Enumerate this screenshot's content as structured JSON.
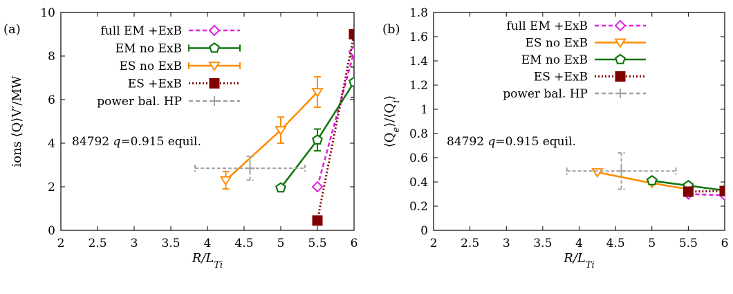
{
  "chart_data": [
    {
      "type": "line",
      "panel_label": "(a)",
      "xlabel": "R/L_Ti",
      "ylabel": "ions ⟨Q⟩V′/MW",
      "xlim": [
        2,
        6
      ],
      "ylim": [
        0,
        10
      ],
      "xticks": [
        2,
        2.5,
        3,
        3.5,
        4,
        4.5,
        5,
        5.5,
        6
      ],
      "yticks": [
        0,
        2,
        4,
        6,
        8,
        10
      ],
      "annotation": "84792 q = 0.915 equil.",
      "legend_placement": "top-left",
      "series": [
        {
          "name": "full EM +ExB",
          "color": "#e020e0",
          "marker": "diamond",
          "dash": "dashed",
          "x": [
            5.5,
            6.0
          ],
          "y": [
            2.0,
            8.2
          ],
          "yerr": [
            0,
            0
          ]
        },
        {
          "name": "EM no ExB",
          "color": "#117711",
          "marker": "pentagon",
          "dash": "solid",
          "x": [
            5.0,
            5.5,
            6.0
          ],
          "y": [
            1.95,
            4.15,
            6.8
          ],
          "yerr": [
            0,
            0.5,
            0.7
          ]
        },
        {
          "name": "ES no ExB",
          "color": "#ff8c00",
          "marker": "triangle-down",
          "dash": "solid",
          "x": [
            4.25,
            5.0,
            5.5
          ],
          "y": [
            2.3,
            4.6,
            6.35
          ],
          "yerr": [
            0.4,
            0.6,
            0.7
          ]
        },
        {
          "name": "ES +ExB",
          "color": "#800000",
          "marker": "square",
          "dash": "dotted",
          "x": [
            5.5,
            6.0,
            6.02
          ],
          "y": [
            0.45,
            9.0,
            10.0
          ],
          "yerr": [
            0,
            0,
            0
          ]
        },
        {
          "name": "power bal. HP",
          "color": "#a0a0a0",
          "marker": "plus",
          "dash": "dashed",
          "x": [
            4.58
          ],
          "y": [
            2.85
          ],
          "xerr": [
            0.75
          ],
          "yerr": [
            0.55
          ]
        }
      ]
    },
    {
      "type": "line",
      "panel_label": "(b)",
      "xlabel": "R/L_Ti",
      "ylabel": "⟨Q_e⟩/⟨Q_i⟩",
      "xlim": [
        2,
        6
      ],
      "ylim": [
        0,
        1.8
      ],
      "xticks": [
        2,
        2.5,
        3,
        3.5,
        4,
        4.5,
        5,
        5.5,
        6
      ],
      "yticks": [
        0,
        0.2,
        0.4,
        0.6,
        0.8,
        1,
        1.2,
        1.4,
        1.6,
        1.8
      ],
      "annotation": "84792 q = 0.915 equil.",
      "legend_placement": "top-left",
      "series": [
        {
          "name": "full EM +ExB",
          "color": "#e020e0",
          "marker": "diamond",
          "dash": "dashed",
          "x": [
            5.5,
            6.0
          ],
          "y": [
            0.3,
            0.29
          ]
        },
        {
          "name": "ES no ExB",
          "color": "#ff8c00",
          "marker": "triangle-down",
          "dash": "solid",
          "x": [
            4.25,
            5.0,
            5.5
          ],
          "y": [
            0.48,
            0.39,
            0.34
          ]
        },
        {
          "name": "EM no ExB",
          "color": "#117711",
          "marker": "pentagon",
          "dash": "solid",
          "x": [
            5.0,
            5.5,
            6.0
          ],
          "y": [
            0.41,
            0.37,
            0.33
          ]
        },
        {
          "name": "ES +ExB",
          "color": "#800000",
          "marker": "square",
          "dash": "dotted",
          "x": [
            5.5,
            6.0
          ],
          "y": [
            0.32,
            0.325
          ]
        },
        {
          "name": "power bal. HP",
          "color": "#a0a0a0",
          "marker": "plus",
          "dash": "dashed",
          "x": [
            4.58
          ],
          "y": [
            0.49
          ],
          "xerr": [
            0.75
          ],
          "yerr": [
            0.15
          ]
        }
      ]
    }
  ]
}
